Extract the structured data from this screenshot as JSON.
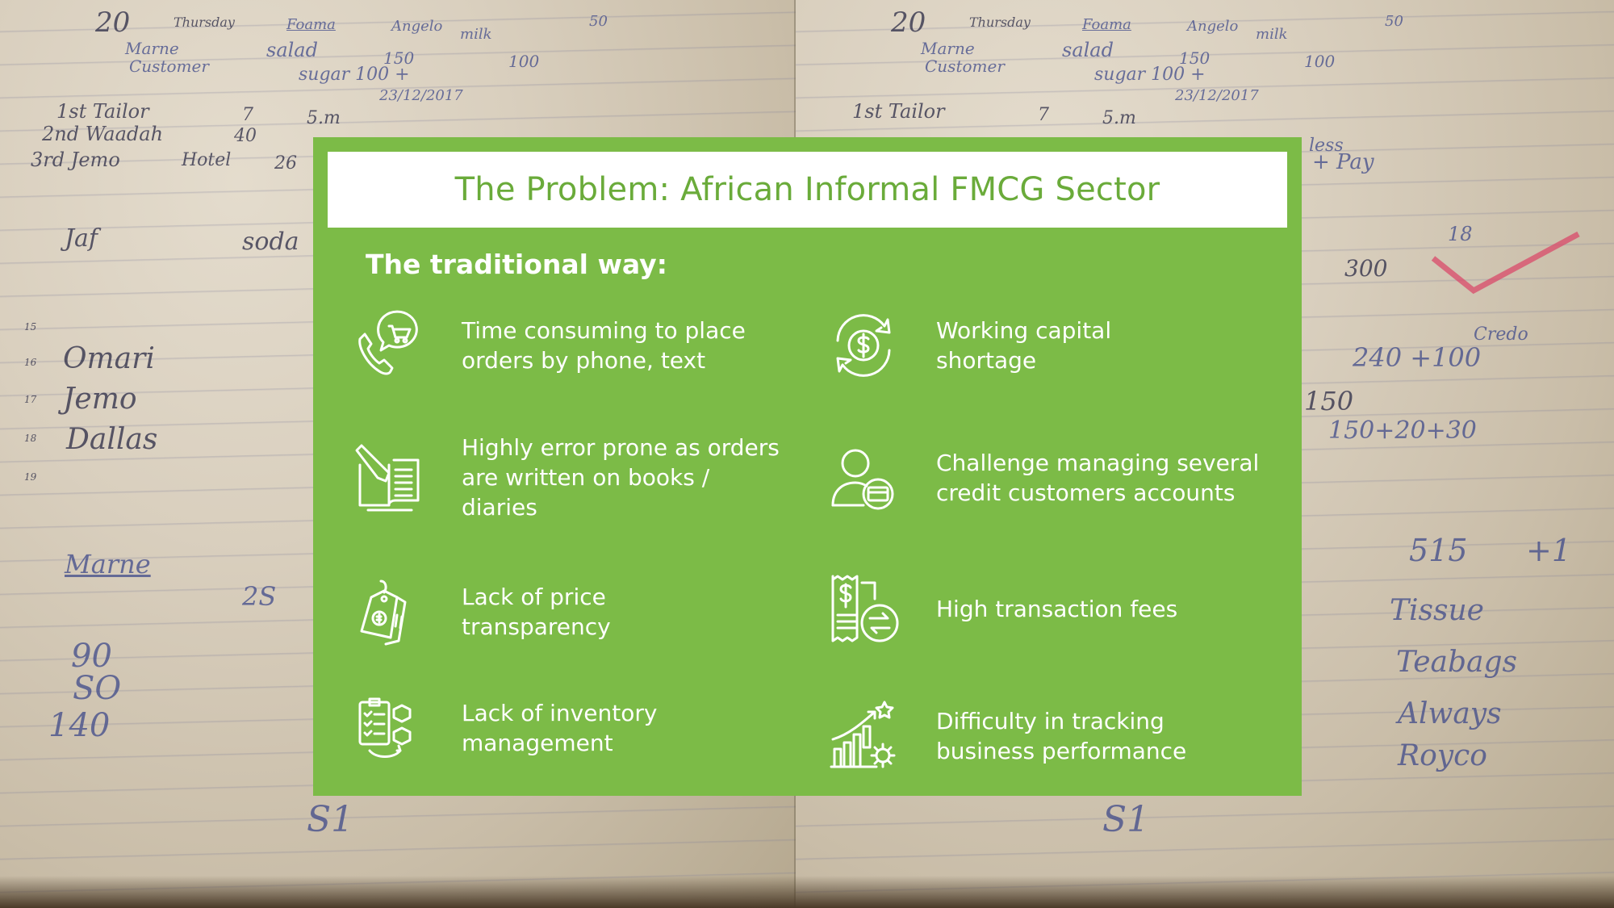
{
  "slide": {
    "title": "The Problem: African Informal FMCG Sector",
    "subtitle": "The traditional way:"
  },
  "problems": {
    "left": [
      {
        "text": "Time consuming to place\norders by phone, text",
        "icon": "phone-cart-icon"
      },
      {
        "text": "Highly error prone as orders\nare written on books /\ndiaries",
        "icon": "notebook-pen-icon"
      },
      {
        "text": "Lack of price\ntransparency",
        "icon": "price-tags-icon"
      },
      {
        "text": "Lack of inventory\nmanagement",
        "icon": "inventory-checklist-icon"
      }
    ],
    "right": [
      {
        "text": "Working capital\nshortage",
        "icon": "cash-cycle-icon"
      },
      {
        "text": "Challenge managing several\ncredit customers accounts",
        "icon": "user-card-icon"
      },
      {
        "text": "High transaction fees",
        "icon": "receipt-transfer-icon"
      },
      {
        "text": "Difficulty in tracking\nbusiness performance",
        "icon": "growth-chart-icon"
      }
    ]
  },
  "background_notes": {
    "left": [
      "20",
      "Thursday",
      "Foama",
      "Angelo",
      "milk",
      "50",
      "Marne",
      "salad",
      "150",
      "Customer",
      "sugar 100 +",
      "100",
      "23/12/2017",
      "1st Tailor",
      "7",
      "5.m",
      "2nd Waadah",
      "40",
      "3rd Jemo",
      "Hotel",
      "26",
      "Jaf",
      "soda",
      "15",
      "16",
      "Omari",
      "17",
      "Jemo",
      "18",
      "Dallas",
      "Marne",
      "19",
      "2S",
      "90",
      "SO",
      "140",
      "S1"
    ],
    "right": [
      "20",
      "Thursday",
      "Foama",
      "Angelo",
      "milk",
      "50",
      "Marne",
      "salad",
      "150",
      "Customer",
      "sugar 100 +",
      "100",
      "23/12/2017",
      "1st Tailor",
      "7",
      "5.m",
      "less",
      "+ Pay",
      "18",
      "300",
      "Credo",
      "240 +100",
      "150",
      "150+20+30",
      "515",
      "+1",
      "Tissue",
      "Teabags",
      "Always",
      "Royco",
      "S1"
    ]
  },
  "colors": {
    "panel": "#7cbb47",
    "title_text": "#6aab3a",
    "text": "#ffffff"
  }
}
